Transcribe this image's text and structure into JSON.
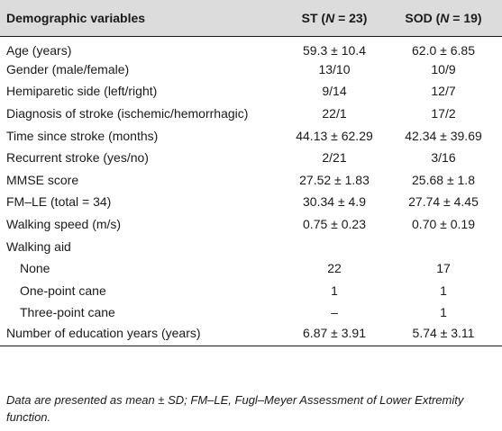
{
  "table": {
    "headers": {
      "col1": "Demographic variables",
      "col2_prefix": "ST (",
      "col2_n": "N",
      "col2_suffix": " = 23)",
      "col3_prefix": "SOD (",
      "col3_n": "N",
      "col3_suffix": " = 19)"
    },
    "rows": [
      {
        "label": "Age (years)",
        "st": "59.3 ± 10.4",
        "sod": "62.0 ± 6.85"
      },
      {
        "label": "Gender (male/female)",
        "st": "13/10",
        "sod": "10/9"
      },
      {
        "label": "Hemiparetic side (left/right)",
        "st": "9/14",
        "sod": "12/7"
      },
      {
        "label": "Diagnosis of stroke (ischemic/hemorrhagic)",
        "st": "22/1",
        "sod": "17/2"
      },
      {
        "label": "Time since stroke (months)",
        "st": "44.13 ± 62.29",
        "sod": "42.34 ± 39.69"
      },
      {
        "label": "Recurrent stroke (yes/no)",
        "st": "2/21",
        "sod": "3/16"
      },
      {
        "label": "MMSE score",
        "st": "27.52 ± 1.83",
        "sod": "25.68 ± 1.8"
      },
      {
        "label": "FM–LE (total = 34)",
        "st": "30.34 ± 4.9",
        "sod": "27.74 ± 4.45"
      },
      {
        "label": "Walking speed (m/s)",
        "st": "0.75 ± 0.23",
        "sod": "0.70 ± 0.19"
      },
      {
        "label": "Walking aid",
        "st": "",
        "sod": ""
      },
      {
        "label": "None",
        "st": "22",
        "sod": "17"
      },
      {
        "label": "One-point cane",
        "st": "1",
        "sod": "1"
      },
      {
        "label": "Three-point cane",
        "st": "–",
        "sod": "1"
      },
      {
        "label": "Number of education years (years)",
        "st": "6.87 ± 3.91",
        "sod": "5.74 ± 3.11"
      }
    ]
  },
  "footnote": "Data are presented as mean ± SD; FM–LE, Fugl–Meyer Assessment of Lower Extremity function."
}
